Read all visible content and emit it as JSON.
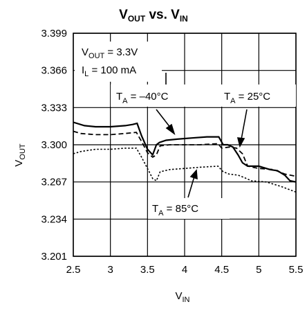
{
  "chart_data": {
    "type": "line",
    "title": {
      "main": "V",
      "sub1": "OUT",
      "mid": " vs. V",
      "sub2": "IN"
    },
    "xlabel": {
      "main": "V",
      "sub": "IN"
    },
    "ylabel": {
      "main": "V",
      "sub": "OUT"
    },
    "xlim": [
      2.5,
      5.5
    ],
    "ylim": [
      3.201,
      3.399
    ],
    "xticks": [
      2.5,
      3,
      3.5,
      4,
      4.5,
      5,
      5.5
    ],
    "xtick_labels": [
      "2.5",
      "3",
      "3.5",
      "4",
      "4.5",
      "5",
      "5.5"
    ],
    "yticks": [
      3.201,
      3.234,
      3.267,
      3.3,
      3.333,
      3.366,
      3.399
    ],
    "ytick_labels": [
      "3.201",
      "3.234",
      "3.267",
      "3.300",
      "3.333",
      "3.366",
      "3.399"
    ],
    "grid": true,
    "conditions": {
      "vout_main": "V",
      "vout_sub": "OUT",
      "vout_rest": " = 3.3V",
      "il_main": "I",
      "il_sub": "L",
      "il_rest": " = 100 mA"
    },
    "series": [
      {
        "label_main": "T",
        "label_sub": "A",
        "label_rest": " = –40°C",
        "style": "solid",
        "x": [
          2.5,
          2.65,
          2.8,
          3.0,
          3.2,
          3.3,
          3.36,
          3.42,
          3.5,
          3.57,
          3.62,
          3.66,
          3.75,
          3.9,
          4.1,
          4.3,
          4.46,
          4.52,
          4.58,
          4.65,
          4.72,
          4.78,
          4.85,
          5.0,
          5.15,
          5.25,
          5.35,
          5.42,
          5.5
        ],
        "y": [
          3.32,
          3.317,
          3.316,
          3.316,
          3.317,
          3.318,
          3.319,
          3.308,
          3.296,
          3.291,
          3.3,
          3.302,
          3.304,
          3.305,
          3.306,
          3.307,
          3.307,
          3.3,
          3.3,
          3.298,
          3.291,
          3.284,
          3.281,
          3.281,
          3.278,
          3.277,
          3.273,
          3.268,
          3.267
        ]
      },
      {
        "label_main": "T",
        "label_sub": "A",
        "label_rest": " = 25°C",
        "style": "dashed",
        "x": [
          2.5,
          2.6,
          2.8,
          3.0,
          3.2,
          3.35,
          3.42,
          3.5,
          3.57,
          3.62,
          3.67,
          3.8,
          4.0,
          4.2,
          4.45,
          4.5,
          4.6,
          4.7,
          4.78,
          4.85,
          5.0,
          5.2,
          5.35,
          5.5
        ],
        "y": [
          3.312,
          3.31,
          3.309,
          3.309,
          3.31,
          3.311,
          3.303,
          3.293,
          3.289,
          3.291,
          3.299,
          3.3,
          3.3,
          3.3,
          3.301,
          3.297,
          3.298,
          3.297,
          3.292,
          3.281,
          3.279,
          3.278,
          3.274,
          3.272
        ]
      },
      {
        "label_main": "T",
        "label_sub": "A",
        "label_rest": " = 85°C",
        "style": "dotted",
        "x": [
          2.5,
          2.6,
          2.8,
          3.0,
          3.2,
          3.35,
          3.42,
          3.5,
          3.57,
          3.62,
          3.67,
          3.8,
          4.0,
          4.2,
          4.45,
          4.52,
          4.6,
          4.72,
          4.8,
          4.9,
          5.1,
          5.3,
          5.5
        ],
        "y": [
          3.292,
          3.294,
          3.296,
          3.296,
          3.297,
          3.297,
          3.289,
          3.279,
          3.27,
          3.268,
          3.276,
          3.278,
          3.279,
          3.28,
          3.281,
          3.276,
          3.274,
          3.273,
          3.271,
          3.268,
          3.267,
          3.263,
          3.258
        ]
      }
    ]
  }
}
